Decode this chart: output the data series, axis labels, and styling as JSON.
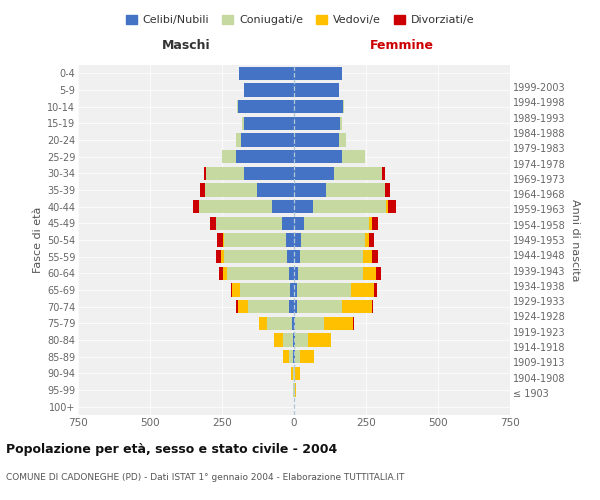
{
  "age_groups": [
    "100+",
    "95-99",
    "90-94",
    "85-89",
    "80-84",
    "75-79",
    "70-74",
    "65-69",
    "60-64",
    "55-59",
    "50-54",
    "45-49",
    "40-44",
    "35-39",
    "30-34",
    "25-29",
    "20-24",
    "15-19",
    "10-14",
    "5-9",
    "0-4"
  ],
  "birth_years": [
    "≤ 1903",
    "1904-1908",
    "1909-1913",
    "1914-1918",
    "1919-1923",
    "1924-1928",
    "1929-1933",
    "1934-1938",
    "1939-1943",
    "1944-1948",
    "1949-1953",
    "1954-1958",
    "1959-1963",
    "1964-1968",
    "1969-1973",
    "1974-1978",
    "1979-1983",
    "1984-1988",
    "1989-1993",
    "1994-1998",
    "1999-2003"
  ],
  "maschi": {
    "celibi": [
      0,
      0,
      0,
      2,
      4,
      8,
      16,
      14,
      18,
      24,
      28,
      40,
      75,
      130,
      175,
      200,
      185,
      175,
      195,
      175,
      190
    ],
    "coniugati": [
      0,
      2,
      5,
      15,
      35,
      85,
      145,
      175,
      215,
      220,
      215,
      230,
      255,
      180,
      130,
      50,
      15,
      5,
      2,
      0,
      0
    ],
    "vedovi": [
      0,
      2,
      5,
      20,
      30,
      30,
      35,
      25,
      15,
      10,
      5,
      0,
      0,
      0,
      0,
      0,
      0,
      0,
      0,
      0,
      0
    ],
    "divorziati": [
      0,
      0,
      0,
      0,
      0,
      0,
      5,
      5,
      12,
      18,
      18,
      20,
      22,
      18,
      8,
      0,
      0,
      0,
      0,
      0,
      0
    ]
  },
  "femmine": {
    "nubili": [
      0,
      0,
      0,
      2,
      3,
      5,
      10,
      12,
      15,
      20,
      25,
      35,
      65,
      110,
      140,
      165,
      155,
      160,
      170,
      155,
      165
    ],
    "coniugate": [
      0,
      2,
      5,
      18,
      45,
      100,
      155,
      185,
      225,
      220,
      220,
      225,
      255,
      205,
      165,
      80,
      25,
      5,
      2,
      0,
      0
    ],
    "vedove": [
      0,
      5,
      15,
      50,
      80,
      100,
      105,
      80,
      45,
      30,
      15,
      10,
      5,
      0,
      0,
      0,
      0,
      0,
      0,
      0,
      0
    ],
    "divorziate": [
      0,
      0,
      0,
      0,
      0,
      2,
      5,
      10,
      18,
      22,
      18,
      22,
      30,
      20,
      10,
      2,
      0,
      0,
      0,
      0,
      0
    ]
  },
  "colors": {
    "celibi": "#4472c4",
    "coniugati": "#c5d9a0",
    "vedovi": "#ffc000",
    "divorziati": "#cc0000"
  },
  "title": "Popolazione per età, sesso e stato civile - 2004",
  "subtitle": "COMUNE DI CADONEGHE (PD) - Dati ISTAT 1° gennaio 2004 - Elaborazione TUTTITALIA.IT",
  "xlabel_left": "Maschi",
  "xlabel_right": "Femmine",
  "ylabel_left": "Fasce di età",
  "ylabel_right": "Anni di nascita",
  "xlim": 750,
  "legend_labels": [
    "Celibi/Nubili",
    "Coniugati/e",
    "Vedovi/e",
    "Divorziati/e"
  ],
  "bg_color": "#ffffff",
  "plot_bg": "#f0f0f0"
}
